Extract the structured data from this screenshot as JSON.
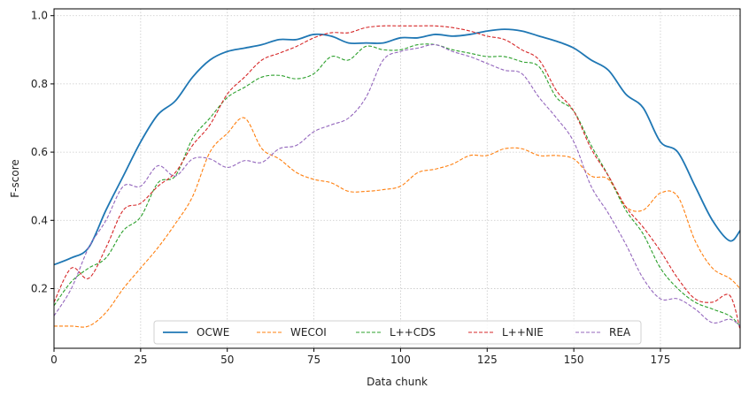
{
  "chart_data": {
    "type": "line",
    "title": "",
    "xlabel": "Data chunk",
    "ylabel": "F-score",
    "xlim": [
      0,
      198
    ],
    "ylim": [
      0.025,
      1.02
    ],
    "xticks": [
      0,
      25,
      50,
      75,
      100,
      125,
      150,
      175
    ],
    "yticks": [
      0.2,
      0.4,
      0.6,
      0.8,
      1.0
    ],
    "xtick_labels": [
      "0",
      "25",
      "50",
      "75",
      "100",
      "125",
      "150",
      "175"
    ],
    "ytick_labels": [
      "0.2",
      "0.4",
      "0.6",
      "0.8",
      "1.0"
    ],
    "grid": true,
    "legend_position": "bottom-center",
    "x": [
      0,
      5,
      10,
      15,
      20,
      25,
      30,
      35,
      40,
      45,
      50,
      55,
      60,
      65,
      70,
      75,
      80,
      85,
      90,
      95,
      100,
      105,
      110,
      115,
      120,
      125,
      130,
      135,
      140,
      145,
      150,
      155,
      160,
      165,
      170,
      175,
      180,
      185,
      190,
      195,
      198
    ],
    "series": [
      {
        "name": "OCWE",
        "color": "#1f77b4",
        "dash": "solid",
        "values": [
          0.27,
          0.29,
          0.32,
          0.43,
          0.53,
          0.63,
          0.71,
          0.75,
          0.82,
          0.87,
          0.895,
          0.905,
          0.915,
          0.93,
          0.93,
          0.945,
          0.94,
          0.92,
          0.92,
          0.92,
          0.935,
          0.935,
          0.945,
          0.94,
          0.945,
          0.955,
          0.96,
          0.955,
          0.94,
          0.925,
          0.905,
          0.87,
          0.84,
          0.77,
          0.73,
          0.63,
          0.6,
          0.5,
          0.4,
          0.34,
          0.37
        ]
      },
      {
        "name": "WECOI",
        "color": "#ff7f0e",
        "dash": "dashed",
        "values": [
          0.09,
          0.09,
          0.09,
          0.13,
          0.2,
          0.26,
          0.32,
          0.39,
          0.47,
          0.6,
          0.655,
          0.7,
          0.61,
          0.58,
          0.54,
          0.52,
          0.51,
          0.485,
          0.485,
          0.49,
          0.5,
          0.54,
          0.55,
          0.565,
          0.59,
          0.59,
          0.61,
          0.61,
          0.59,
          0.59,
          0.58,
          0.53,
          0.52,
          0.44,
          0.43,
          0.48,
          0.47,
          0.34,
          0.26,
          0.23,
          0.2
        ]
      },
      {
        "name": "L++CDS",
        "color": "#2ca02c",
        "dash": "dashed",
        "values": [
          0.15,
          0.22,
          0.26,
          0.29,
          0.37,
          0.41,
          0.51,
          0.53,
          0.64,
          0.7,
          0.76,
          0.79,
          0.82,
          0.825,
          0.815,
          0.83,
          0.88,
          0.87,
          0.91,
          0.9,
          0.9,
          0.915,
          0.915,
          0.9,
          0.89,
          0.88,
          0.88,
          0.865,
          0.85,
          0.76,
          0.72,
          0.62,
          0.53,
          0.43,
          0.36,
          0.26,
          0.2,
          0.16,
          0.14,
          0.12,
          0.09
        ]
      },
      {
        "name": "L++NIE",
        "color": "#d62728",
        "dash": "dashed",
        "values": [
          0.16,
          0.26,
          0.23,
          0.32,
          0.43,
          0.45,
          0.5,
          0.54,
          0.62,
          0.68,
          0.77,
          0.82,
          0.87,
          0.89,
          0.91,
          0.935,
          0.95,
          0.95,
          0.965,
          0.97,
          0.97,
          0.97,
          0.97,
          0.965,
          0.955,
          0.94,
          0.93,
          0.9,
          0.87,
          0.78,
          0.72,
          0.61,
          0.53,
          0.44,
          0.38,
          0.31,
          0.23,
          0.17,
          0.16,
          0.18,
          0.08
        ]
      },
      {
        "name": "REA",
        "color": "#9467bd",
        "dash": "dashed",
        "values": [
          0.12,
          0.2,
          0.32,
          0.4,
          0.5,
          0.5,
          0.56,
          0.53,
          0.58,
          0.58,
          0.555,
          0.575,
          0.57,
          0.61,
          0.62,
          0.66,
          0.68,
          0.7,
          0.76,
          0.87,
          0.895,
          0.905,
          0.915,
          0.895,
          0.88,
          0.86,
          0.84,
          0.83,
          0.76,
          0.7,
          0.63,
          0.5,
          0.42,
          0.33,
          0.23,
          0.17,
          0.17,
          0.14,
          0.1,
          0.11,
          0.09
        ]
      }
    ]
  }
}
